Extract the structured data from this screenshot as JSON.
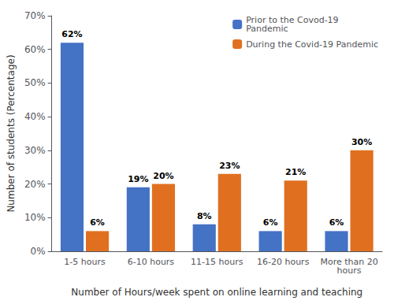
{
  "chart_data": {
    "type": "bar",
    "xlabel": "Number of Hours/week spent on online learning and teaching",
    "ylabel": "Number of students (Percentage)",
    "categories": [
      "1-5 hours",
      "6-10 hours",
      "11-15 hours",
      "16-20 hours",
      "More than 20\nhours"
    ],
    "series": [
      {
        "name": "Prior to the Covod-19\nPandemic",
        "color": "#4472C4",
        "values": [
          62,
          19,
          8,
          6,
          6
        ],
        "value_labels": [
          "62%",
          "19%",
          "8%",
          "6%",
          "6%"
        ]
      },
      {
        "name": "During the Covid-19 Pandemic",
        "color": "#E07020",
        "values": [
          6,
          20,
          23,
          21,
          30
        ],
        "value_labels": [
          "6%",
          "20%",
          "23%",
          "21%",
          "30%"
        ]
      }
    ],
    "ylim": [
      0,
      70
    ],
    "yticks": [
      {
        "value": 0,
        "label": "0%"
      },
      {
        "value": 10,
        "label": "10%"
      },
      {
        "value": 20,
        "label": "20%"
      },
      {
        "value": 30,
        "label": "30%"
      },
      {
        "value": 40,
        "label": "40%"
      },
      {
        "value": 50,
        "label": "50%"
      },
      {
        "value": 60,
        "label": "60%"
      },
      {
        "value": 70,
        "label": "70%"
      }
    ],
    "grid": false,
    "legend": "upper right",
    "data_labels": true
  }
}
